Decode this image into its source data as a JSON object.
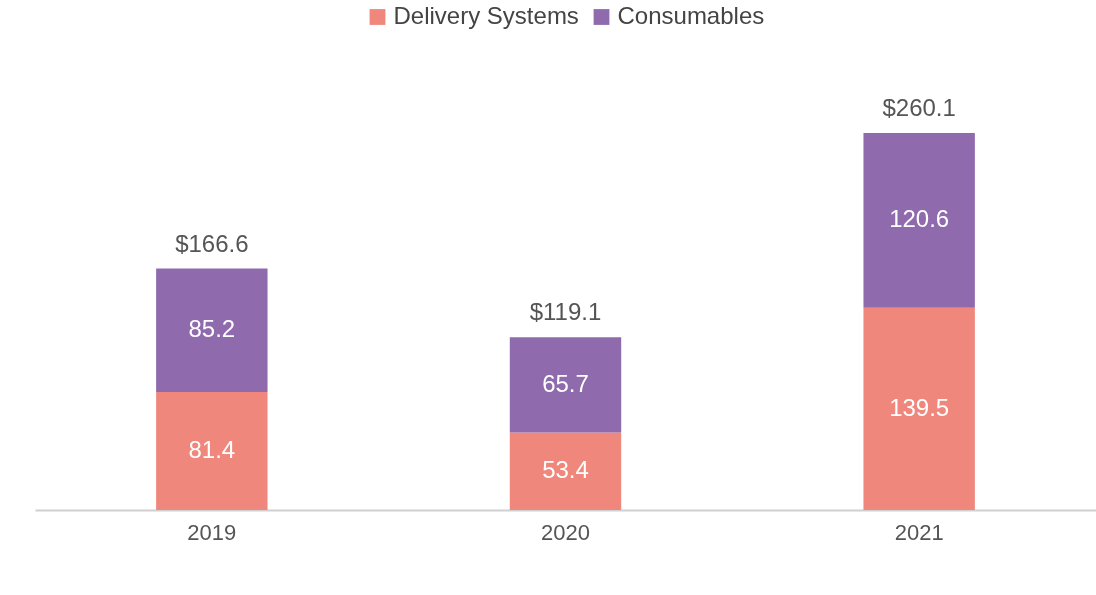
{
  "chart_data": {
    "type": "bar",
    "stacked": true,
    "data_labels": true,
    "legend": "top",
    "grid": false,
    "categories": [
      "2019",
      "2020",
      "2021"
    ],
    "series": [
      {
        "name": "Delivery Systems",
        "color": "#ef877c",
        "values": [
          81.4,
          53.4,
          139.5
        ]
      },
      {
        "name": "Consumables",
        "color": "#8f6aad",
        "values": [
          85.2,
          65.7,
          120.6
        ]
      }
    ],
    "totals": [
      "$166.6",
      "$119.1",
      "$260.1"
    ]
  }
}
